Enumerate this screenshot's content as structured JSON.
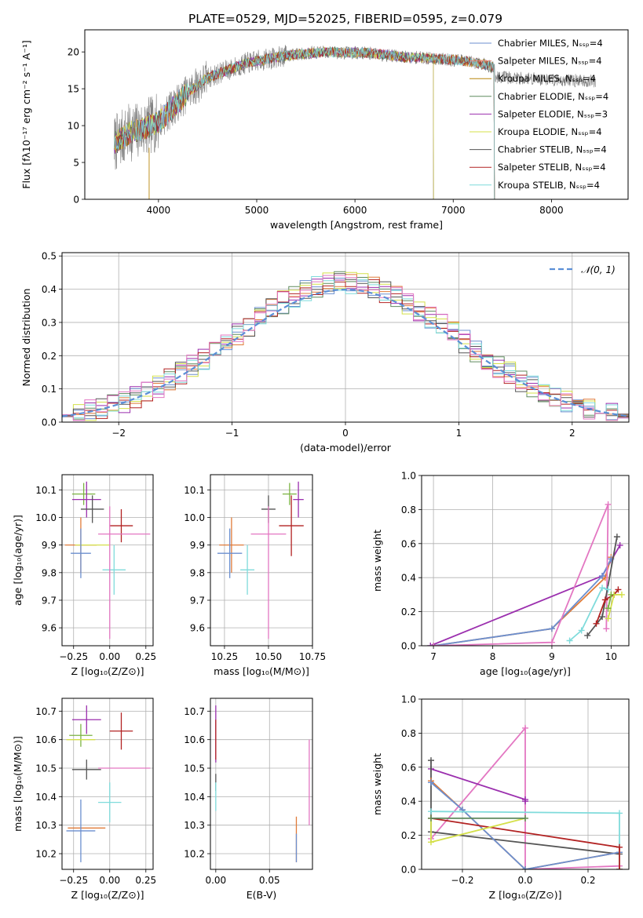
{
  "figure_title": "PLATE=0529, MJD=52025, FIBERID=0595, z=0.079",
  "chart_data": [
    {
      "id": "spectrum",
      "type": "line",
      "xlabel": "wavelength [Angstrom, rest frame]",
      "ylabel": "Flux [fλ10⁻¹⁷ erg cm⁻² s⁻¹ A⁻¹]",
      "xlim": [
        3250,
        8780
      ],
      "ylim": [
        0,
        23
      ],
      "xticks": [
        "4000",
        "5000",
        "6000",
        "7000",
        "8000"
      ],
      "yticks": [
        "0",
        "5",
        "10",
        "15",
        "20"
      ],
      "grid": false,
      "legend_position": "right",
      "continuum": {
        "x": [
          3550,
          3700,
          3850,
          4000,
          4150,
          4300,
          4500,
          4700,
          4900,
          5100,
          5300,
          5500,
          5700,
          5900,
          6100,
          6300,
          6500,
          6700,
          6900,
          7100,
          7300,
          7420
        ],
        "y": [
          7.5,
          9.0,
          9.6,
          10.5,
          12.5,
          14.5,
          16.5,
          17.5,
          18.5,
          19.0,
          19.5,
          19.8,
          20.0,
          19.9,
          19.9,
          19.6,
          19.3,
          19.2,
          19.0,
          18.8,
          18.4,
          17.8
        ]
      },
      "series": [
        {
          "name": "Chabrier MILES, N_SSP=4",
          "color": "#6b8fcf",
          "xmax": 7420
        },
        {
          "name": "Salpeter MILES, N_SSP=4",
          "color": "#e3877a",
          "xmax": 7420
        },
        {
          "name": "Kroupa MILES, N_SSP=4",
          "color": "#b8860b",
          "xmax": 7420
        },
        {
          "name": "Chabrier ELODIE, N_SSP=4",
          "color": "#5f8a5f",
          "xmax": 6800
        },
        {
          "name": "Salpeter ELODIE, N_SSP=3",
          "color": "#9b2fae",
          "xmax": 6800
        },
        {
          "name": "Kroupa ELODIE, N_SSP=4",
          "color": "#d4e04a",
          "xmax": 6800
        },
        {
          "name": "Chabrier STELIB, N_SSP=4",
          "color": "#555555",
          "xmax": 7420
        },
        {
          "name": "Salpeter STELIB, N_SSP=4",
          "color": "#b22222",
          "xmax": 7420
        },
        {
          "name": "Kroupa STELIB, N_SSP=4",
          "color": "#7fdbdb",
          "xmax": 7420
        }
      ],
      "data_range": [
        3550,
        8450
      ]
    },
    {
      "id": "residuals",
      "type": "line",
      "xlabel": "(data-model)/error",
      "ylabel": "Normed distribution",
      "xlim": [
        -2.5,
        2.5
      ],
      "ylim": [
        0,
        0.51
      ],
      "xticks": [
        "−2",
        "−1",
        "0",
        "1",
        "2"
      ],
      "yticks": [
        "0.0",
        "0.1",
        "0.2",
        "0.3",
        "0.4",
        "0.5"
      ],
      "grid": true,
      "legend_position": "top-right",
      "legend": "𝒩(0, 1)",
      "bin_width": 0.1,
      "histogram_colors": [
        "#6b8fcf",
        "#e07b39",
        "#5f8a5f",
        "#9b2fae",
        "#d4e04a",
        "#555555",
        "#b22222",
        "#7fdbdb",
        "#e377c2"
      ]
    },
    {
      "id": "age_vs_Z",
      "type": "scatter",
      "xlabel": "Z [log₁₀(Z/Z⊙)]",
      "ylabel": "age  [log₁₀(age/yr)]",
      "xlim": [
        -0.33,
        0.3
      ],
      "ylim": [
        9.535,
        10.155
      ],
      "xticks": [
        "−0.25",
        "0.00",
        "0.25"
      ],
      "yticks": [
        "9.6",
        "9.7",
        "9.8",
        "9.9",
        "10.0",
        "10.1"
      ],
      "grid": true,
      "points": [
        {
          "x": -0.18,
          "xerr": 0.08,
          "y": 10.085,
          "yerr": 0.04,
          "color": "#7cb342"
        },
        {
          "x": -0.16,
          "xerr": 0.1,
          "y": 10.065,
          "yerr": 0.065,
          "color": "#9b2fae"
        },
        {
          "x": -0.12,
          "xerr": 0.08,
          "y": 10.03,
          "yerr": 0.05,
          "color": "#555555"
        },
        {
          "x": 0.08,
          "xerr": 0.08,
          "y": 9.97,
          "yerr": 0.06,
          "color": "#b22222"
        },
        {
          "x": -0.2,
          "xerr": 0.11,
          "y": 9.9,
          "yerr": 0.1,
          "color": "#e07b39"
        },
        {
          "x": 0.1,
          "xerr": 0.18,
          "y": 9.94,
          "yerr": 0.0,
          "color": "#e377c2"
        },
        {
          "x": -0.12,
          "xerr": 0.12,
          "y": 9.9,
          "yerr": 0.0,
          "color": "#d4e04a"
        },
        {
          "x": -0.2,
          "xerr": 0.07,
          "y": 9.87,
          "yerr": 0.09,
          "color": "#6b8fcf"
        },
        {
          "x": 0.03,
          "xerr": 0.08,
          "y": 9.81,
          "yerr": 0.09,
          "color": "#7fdbdb"
        },
        {
          "x": 0.0,
          "xerr": 0.0,
          "y": 9.8,
          "yerr": 0.24,
          "color": "#e377c2"
        }
      ]
    },
    {
      "id": "age_vs_mass",
      "type": "scatter",
      "xlabel": "mass [log₁₀(M/M⊙)]",
      "ylabel": "",
      "xlim": [
        10.17,
        10.75
      ],
      "ylim": [
        9.535,
        10.155
      ],
      "xticks": [
        "10.25",
        "10.50",
        "10.75"
      ],
      "yticks": [
        "9.6",
        "9.7",
        "9.8",
        "9.9",
        "10.0",
        "10.1"
      ],
      "grid": true,
      "points": [
        {
          "x": 10.62,
          "xerr": 0.04,
          "y": 10.085,
          "yerr": 0.04,
          "color": "#7cb342"
        },
        {
          "x": 10.67,
          "xerr": 0.03,
          "y": 10.065,
          "yerr": 0.065,
          "color": "#9b2fae"
        },
        {
          "x": 10.5,
          "xerr": 0.04,
          "y": 10.03,
          "yerr": 0.05,
          "color": "#555555"
        },
        {
          "x": 10.63,
          "xerr": 0.07,
          "y": 9.97,
          "yerr": 0.11,
          "color": "#b22222"
        },
        {
          "x": 10.29,
          "xerr": 0.07,
          "y": 9.9,
          "yerr": 0.1,
          "color": "#e07b39"
        },
        {
          "x": 10.5,
          "xerr": 0.1,
          "y": 9.94,
          "yerr": 0.0,
          "color": "#e377c2"
        },
        {
          "x": 10.28,
          "xerr": 0.07,
          "y": 9.87,
          "yerr": 0.09,
          "color": "#6b8fcf"
        },
        {
          "x": 10.38,
          "xerr": 0.04,
          "y": 9.81,
          "yerr": 0.09,
          "color": "#7fdbdb"
        },
        {
          "x": 10.5,
          "xerr": 0.0,
          "y": 9.8,
          "yerr": 0.24,
          "color": "#e377c2"
        }
      ]
    },
    {
      "id": "weight_vs_age",
      "type": "line",
      "xlabel": "age  [log₁₀(age/yr)]",
      "ylabel": "mass weight",
      "xlim": [
        6.8,
        10.3
      ],
      "ylim": [
        0,
        1.0
      ],
      "xticks": [
        "7",
        "8",
        "9",
        "10"
      ],
      "yticks": [
        "0.0",
        "0.2",
        "0.4",
        "0.6",
        "0.8",
        "1.0"
      ],
      "grid": true,
      "series": [
        {
          "color": "#9b2fae",
          "x": [
            6.95,
            9.85,
            10.15
          ],
          "y": [
            0.0,
            0.41,
            0.59
          ]
        },
        {
          "color": "#e07b39",
          "x": [
            7.0,
            9.0,
            9.9,
            10.0
          ],
          "y": [
            0.0,
            0.1,
            0.4,
            0.52
          ]
        },
        {
          "color": "#6b8fcf",
          "x": [
            7.0,
            9.0,
            9.85,
            10.0
          ],
          "y": [
            0.0,
            0.1,
            0.41,
            0.51
          ]
        },
        {
          "color": "#e377c2",
          "x": [
            7.0,
            9.0,
            9.95,
            9.92
          ],
          "y": [
            0.0,
            0.02,
            0.83,
            0.1
          ]
        },
        {
          "color": "#555555",
          "x": [
            9.6,
            9.85,
            10.1
          ],
          "y": [
            0.06,
            0.17,
            0.64
          ]
        },
        {
          "color": "#b22222",
          "x": [
            9.75,
            9.9,
            10.05,
            10.12
          ],
          "y": [
            0.13,
            0.27,
            0.3,
            0.33
          ]
        },
        {
          "color": "#7fdbdb",
          "x": [
            9.3,
            9.5,
            9.85,
            9.95
          ],
          "y": [
            0.03,
            0.09,
            0.34,
            0.33
          ]
        },
        {
          "color": "#d4e04a",
          "x": [
            9.95,
            10.05,
            10.18
          ],
          "y": [
            0.16,
            0.3,
            0.3
          ]
        },
        {
          "color": "#7cb342",
          "x": [
            9.95,
            10.0
          ],
          "y": [
            0.22,
            0.3
          ]
        }
      ]
    },
    {
      "id": "mass_vs_Z",
      "type": "scatter",
      "xlabel": "Z [log₁₀(Z/Z⊙)]",
      "ylabel": "mass [log₁₀(M/M⊙)]",
      "xlim": [
        -0.33,
        0.3
      ],
      "ylim": [
        10.145,
        10.745
      ],
      "xticks": [
        "−0.25",
        "0.00",
        "0.25"
      ],
      "yticks": [
        "10.2",
        "10.3",
        "10.4",
        "10.5",
        "10.6",
        "10.7"
      ],
      "grid": true,
      "points": [
        {
          "x": -0.16,
          "xerr": 0.1,
          "y": 10.67,
          "yerr": 0.05,
          "color": "#9b2fae"
        },
        {
          "x": 0.08,
          "xerr": 0.08,
          "y": 10.63,
          "yerr": 0.065,
          "color": "#b22222"
        },
        {
          "x": -0.2,
          "xerr": 0.08,
          "y": 10.615,
          "yerr": 0.04,
          "color": "#7cb342"
        },
        {
          "x": -0.2,
          "xerr": 0.1,
          "y": 10.6,
          "yerr": 0.0,
          "color": "#d4e04a"
        },
        {
          "x": 0.1,
          "xerr": 0.18,
          "y": 10.5,
          "yerr": 0.0,
          "color": "#e377c2"
        },
        {
          "x": -0.16,
          "xerr": 0.1,
          "y": 10.495,
          "yerr": 0.035,
          "color": "#555555"
        },
        {
          "x": 0.0,
          "xerr": 0.08,
          "y": 10.38,
          "yerr": 0.07,
          "color": "#7fdbdb"
        },
        {
          "x": -0.16,
          "xerr": 0.13,
          "y": 10.29,
          "yerr": 0.0,
          "color": "#e07b39"
        },
        {
          "x": -0.2,
          "xerr": 0.1,
          "y": 10.28,
          "yerr": 0.11,
          "color": "#6b8fcf"
        }
      ]
    },
    {
      "id": "mass_vs_EBV",
      "type": "scatter",
      "xlabel": "E(B-V)",
      "ylabel": "",
      "xlim": [
        -0.005,
        0.09
      ],
      "ylim": [
        10.145,
        10.745
      ],
      "xticks": [
        "0.00",
        "0.05"
      ],
      "yticks": [
        "10.2",
        "10.3",
        "10.4",
        "10.5",
        "10.6",
        "10.7"
      ],
      "grid": true,
      "points": [
        {
          "x": 0.0,
          "xerr": 0.0,
          "y": 10.62,
          "yerr": 0.1,
          "color": "#9b2fae"
        },
        {
          "x": 0.0,
          "xerr": 0.0,
          "y": 10.6,
          "yerr": 0.07,
          "color": "#b22222"
        },
        {
          "x": 0.0,
          "xerr": 0.0,
          "y": 10.45,
          "yerr": 0.03,
          "color": "#555555"
        },
        {
          "x": 0.0,
          "xerr": 0.0,
          "y": 10.4,
          "yerr": 0.05,
          "color": "#7fdbdb"
        },
        {
          "x": 0.075,
          "xerr": 0.0,
          "y": 10.25,
          "yerr": 0.08,
          "color": "#e07b39"
        },
        {
          "x": 0.075,
          "xerr": 0.0,
          "y": 10.22,
          "yerr": 0.05,
          "color": "#6b8fcf"
        },
        {
          "x": 0.087,
          "xerr": 0.0,
          "y": 10.45,
          "yerr": 0.15,
          "color": "#e377c2"
        }
      ]
    },
    {
      "id": "weight_vs_Z",
      "type": "line",
      "xlabel": "Z [log₁₀(Z/Z⊙)]",
      "ylabel": "mass weight",
      "xlim": [
        -0.33,
        0.33
      ],
      "ylim": [
        0,
        1.0
      ],
      "xticks": [
        "−0.2",
        "0.0",
        "0.2"
      ],
      "yticks": [
        "0.0",
        "0.2",
        "0.4",
        "0.6",
        "0.8",
        "1.0"
      ],
      "grid": true,
      "series": [
        {
          "color": "#e377c2",
          "x": [
            -0.3,
            0.0,
            0.0,
            0.3
          ],
          "y": [
            0.18,
            0.83,
            0.0,
            0.02
          ]
        },
        {
          "color": "#9b2fae",
          "x": [
            -0.3,
            0.0,
            0.0
          ],
          "y": [
            0.59,
            0.41,
            0.4
          ]
        },
        {
          "color": "#555555",
          "x": [
            -0.3,
            -0.3,
            0.3
          ],
          "y": [
            0.64,
            0.22,
            0.09
          ]
        },
        {
          "color": "#e07b39",
          "x": [
            -0.3,
            -0.2,
            0.0,
            0.3
          ],
          "y": [
            0.52,
            0.35,
            0.0,
            0.1
          ]
        },
        {
          "color": "#6b8fcf",
          "x": [
            -0.3,
            -0.2,
            0.0,
            0.3
          ],
          "y": [
            0.51,
            0.35,
            0.0,
            0.1
          ]
        },
        {
          "color": "#7fdbdb",
          "x": [
            -0.3,
            0.3,
            0.3
          ],
          "y": [
            0.34,
            0.33,
            0.0
          ]
        },
        {
          "color": "#b22222",
          "x": [
            -0.3,
            0.3,
            0.3
          ],
          "y": [
            0.3,
            0.13,
            0.0
          ]
        },
        {
          "color": "#d4e04a",
          "x": [
            -0.3,
            -0.3,
            0.0
          ],
          "y": [
            0.3,
            0.16,
            0.3
          ]
        },
        {
          "color": "#5f8a5f",
          "x": [
            -0.3,
            0.0
          ],
          "y": [
            0.3,
            0.3
          ]
        }
      ]
    }
  ]
}
